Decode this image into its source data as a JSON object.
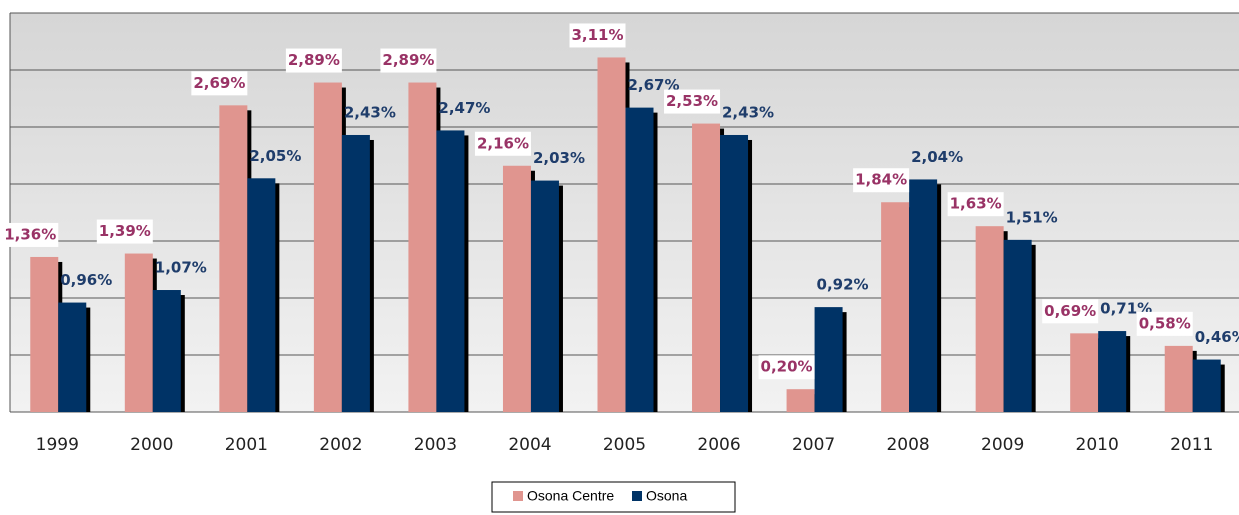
{
  "chart_data": {
    "type": "bar",
    "categories": [
      "1999",
      "2000",
      "2001",
      "2002",
      "2003",
      "2004",
      "2005",
      "2006",
      "2007",
      "2008",
      "2009",
      "2010",
      "2011"
    ],
    "series": [
      {
        "name": "Osona Centre",
        "color": "#e0958f",
        "label_color": "#993366",
        "values": [
          1.36,
          1.39,
          2.69,
          2.89,
          2.89,
          2.16,
          3.11,
          2.53,
          0.2,
          1.84,
          1.63,
          0.69,
          0.58
        ],
        "value_labels": [
          "1,36%",
          "1,39%",
          "2,69%",
          "2,89%",
          "2,89%",
          "2,16%",
          "3,11%",
          "2,53%",
          "0,20%",
          "1,84%",
          "1,63%",
          "0,69%",
          "0,58%"
        ]
      },
      {
        "name": "Osona",
        "color": "#003366",
        "label_color": "#1f3d6b",
        "values": [
          0.96,
          1.07,
          2.05,
          2.43,
          2.47,
          2.03,
          2.67,
          2.43,
          0.92,
          2.04,
          1.51,
          0.71,
          0.46
        ],
        "value_labels": [
          "0,96%",
          "1,07%",
          "2,05%",
          "2,43%",
          "2,47%",
          "2,03%",
          "2,67%",
          "2,43%",
          "0,92%",
          "2,04%",
          "1,51%",
          "0,71%",
          "0,46%"
        ]
      }
    ],
    "ylim": [
      0,
      3.5
    ],
    "yticks": [
      0,
      0.5,
      1,
      1.5,
      2,
      2.5,
      3,
      3.5
    ],
    "grid": true
  }
}
